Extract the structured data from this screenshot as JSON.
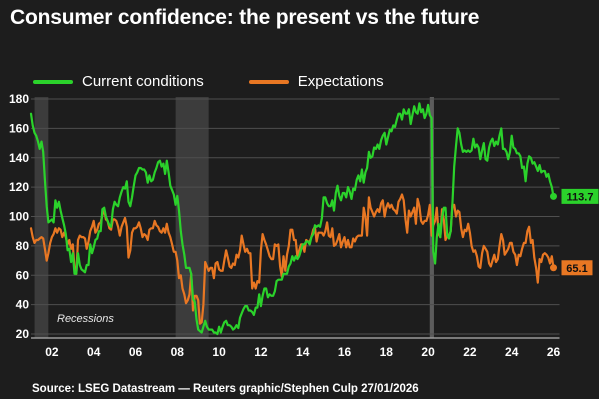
{
  "title": "Consumer confidence: the present vs the future",
  "source": "Source: LSEG Datastream — Reuters graphic/Stephen Culp 27/01/2026",
  "annotations": {
    "recessions_label": "Recessions"
  },
  "colors": {
    "background": "#1d1d1d",
    "gridline": "#4f4f4f",
    "axis_line": "#9a9a9a",
    "recession_band": "#3c3c3c",
    "recession_band_2020": "#5c5c5c",
    "current_conditions": "#2bd22b",
    "expectations": "#e87723",
    "text": "#ffffff"
  },
  "legend": [
    {
      "label": "Current conditions",
      "color": "#2bd22b"
    },
    {
      "label": "Expectations",
      "color": "#e87723"
    }
  ],
  "chart_data": {
    "type": "line",
    "title": "Consumer confidence: the present vs the future",
    "xlabel": "",
    "ylabel": "",
    "ylim": [
      20,
      180
    ],
    "y_ticks": [
      "20",
      "40",
      "60",
      "80",
      "100",
      "120",
      "140",
      "160",
      "180"
    ],
    "grid": true,
    "legend_position": "top-left",
    "x_start_year": 2001,
    "x_end_year": 2026,
    "points_per_year": 12,
    "x_ticks": [
      {
        "label": "02",
        "year": 2002
      },
      {
        "label": "04",
        "year": 2004
      },
      {
        "label": "06",
        "year": 2006
      },
      {
        "label": "08",
        "year": 2008
      },
      {
        "label": "10",
        "year": 2010
      },
      {
        "label": "12",
        "year": 2012
      },
      {
        "label": "14",
        "year": 2014
      },
      {
        "label": "16",
        "year": 2016
      },
      {
        "label": "18",
        "year": 2018
      },
      {
        "label": "20",
        "year": 2020
      },
      {
        "label": "22",
        "year": 2022
      },
      {
        "label": "24",
        "year": 2024
      },
      {
        "label": "26",
        "year": 2026
      }
    ],
    "recession_bands_years": [
      {
        "start": 2001.17,
        "end": 2001.83,
        "color": "#3c3c3c"
      },
      {
        "start": 2007.92,
        "end": 2009.5,
        "color": "#3c3c3c"
      },
      {
        "start": 2020.08,
        "end": 2020.28,
        "color": "#5c5c5c"
      }
    ],
    "series": [
      {
        "name": "Current conditions",
        "color": "#2bd22b",
        "end_label": "113.7",
        "end_value": 113.7,
        "values": [
          170,
          162,
          157,
          155,
          151,
          146,
          151,
          144,
          125,
          107,
          96,
          97,
          98,
          96,
          111,
          106,
          110,
          104,
          99,
          94,
          88,
          77,
          78,
          69,
          75,
          61,
          61,
          75,
          67,
          64,
          63,
          62,
          67,
          67,
          81,
          75,
          79,
          84,
          85,
          90,
          90,
          105,
          106,
          100,
          97,
          94,
          93,
          105,
          110,
          108,
          107,
          113,
          117,
          120,
          119,
          124,
          110,
          107,
          113,
          121,
          128,
          130,
          133,
          133,
          132,
          132,
          130,
          123,
          128,
          124,
          125,
          130,
          133,
          137,
          138,
          134,
          136,
          129,
          138,
          130,
          121,
          118,
          115,
          108,
          114,
          104,
          90,
          81,
          74,
          65,
          65,
          65,
          61,
          44,
          42,
          30,
          23,
          22,
          21,
          25,
          29,
          25,
          23,
          23,
          23,
          21,
          21,
          20,
          25,
          21,
          25,
          28,
          29,
          26,
          26,
          25,
          23,
          24,
          26,
          24,
          31,
          34,
          37,
          39,
          39,
          36,
          36,
          35,
          33,
          38,
          38,
          47,
          39,
          46,
          51,
          51,
          45,
          47,
          46,
          46,
          49,
          56,
          57,
          57,
          57,
          61,
          61,
          61,
          66,
          68,
          73,
          70,
          73,
          71,
          73,
          77,
          81,
          81,
          83,
          83,
          81,
          86,
          88,
          94,
          93,
          94,
          93,
          99,
          113,
          113,
          109,
          107,
          107,
          111,
          104,
          116,
          121,
          114,
          111,
          116,
          116,
          113,
          120,
          117,
          112,
          119,
          118,
          125,
          128,
          124,
          132,
          123,
          130,
          133,
          144,
          140,
          141,
          147,
          146,
          149,
          146,
          152,
          155,
          157,
          149,
          154,
          159,
          158,
          162,
          161,
          166,
          170,
          170,
          166,
          173,
          170,
          170,
          173,
          163,
          169,
          175,
          171,
          170,
          177,
          171,
          173,
          167,
          170,
          176,
          169,
          167,
          76,
          68,
          86,
          95,
          86,
          99,
          106,
          106,
          87,
          85,
          90,
          110,
          134,
          148,
          160,
          157,
          149,
          144,
          145,
          144,
          145,
          144,
          145,
          153,
          147,
          149,
          147,
          139,
          145,
          150,
          139,
          138,
          147,
          151,
          153,
          148,
          151,
          149,
          155,
          160,
          146,
          146,
          144,
          139,
          144,
          155,
          147,
          146,
          143,
          143,
          141,
          133,
          134,
          124,
          136,
          141,
          140,
          136,
          137,
          134,
          131,
          135,
          130,
          131,
          131,
          127,
          129,
          124,
          120,
          113.7
        ]
      },
      {
        "name": "Expectations",
        "color": "#e87723",
        "end_label": "65.1",
        "end_value": 65.1,
        "values": [
          92,
          86,
          82,
          84,
          84,
          85,
          86,
          85,
          78,
          70,
          75,
          82,
          86,
          88,
          92,
          89,
          92,
          91,
          86,
          89,
          86,
          81,
          84,
          78,
          81,
          65,
          61,
          84,
          87,
          86,
          86,
          85,
          78,
          83,
          90,
          93,
          97,
          89,
          91,
          95,
          96,
          101,
          105,
          98,
          97,
          92,
          91,
          98,
          98,
          97,
          93,
          87,
          93,
          96,
          99,
          93,
          72,
          77,
          89,
          92,
          92,
          93,
          96,
          92,
          86,
          88,
          87,
          84,
          91,
          92,
          92,
          97,
          94,
          93,
          90,
          89,
          92,
          89,
          95,
          89,
          86,
          81,
          76,
          76,
          70,
          58,
          60,
          51,
          47,
          41,
          43,
          47,
          61,
          36,
          46,
          46,
          43,
          27,
          28,
          40,
          69,
          66,
          63,
          65,
          65,
          58,
          68,
          69,
          64,
          63,
          63,
          70,
          77,
          72,
          66,
          65,
          68,
          67,
          74,
          72,
          77,
          87,
          81,
          76,
          78,
          75,
          75,
          51,
          55,
          51,
          56,
          55,
          77,
          88,
          84,
          81,
          77,
          73,
          71,
          71,
          81,
          80,
          81,
          66,
          59,
          73,
          63,
          74,
          80,
          91,
          91,
          84,
          84,
          72,
          77,
          81,
          81,
          76,
          84,
          83,
          83,
          86,
          91,
          93,
          83,
          89,
          89,
          89,
          87,
          90,
          96,
          87,
          86,
          92,
          80,
          81,
          84,
          88,
          79,
          83,
          86,
          79,
          84,
          79,
          79,
          85,
          83,
          86,
          87,
          87,
          87,
          106,
          100,
          87,
          113,
          106,
          103,
          100,
          103,
          105,
          103,
          109,
          111,
          100,
          106,
          109,
          106,
          108,
          105,
          104,
          102,
          110,
          112,
          115,
          111,
          98,
          89,
          104,
          100,
          103,
          106,
          95,
          112,
          107,
          97,
          95,
          97,
          97,
          101,
          108,
          87,
          94,
          97,
          106,
          88,
          86,
          105,
          98,
          84,
          87,
          87,
          90,
          108,
          108,
          100,
          104,
          103,
          92,
          86,
          91,
          90,
          95,
          89,
          80,
          76,
          77,
          73,
          66,
          65,
          75,
          80,
          78,
          76,
          68,
          66,
          70,
          74,
          69,
          71,
          80,
          88,
          84,
          74,
          76,
          78,
          82,
          82,
          76,
          74,
          67,
          74,
          73,
          78,
          82,
          82,
          90,
          93,
          82,
          84,
          72,
          65,
          55,
          71,
          69,
          74,
          75,
          74,
          72,
          68,
          73,
          65.1
        ]
      }
    ]
  }
}
